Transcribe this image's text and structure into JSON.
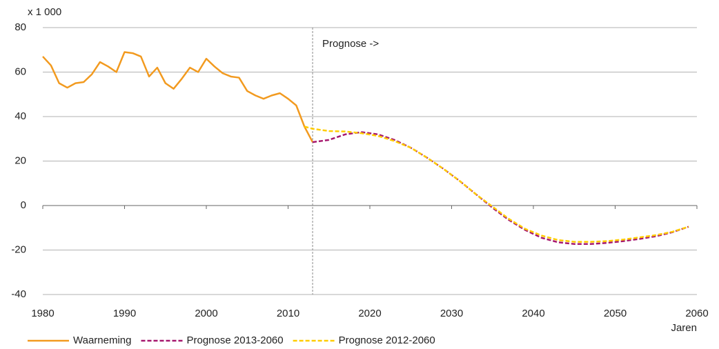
{
  "chart_data": {
    "type": "line",
    "y_unit_label": "x 1 000",
    "x_label": "Jaren",
    "annotation": {
      "text": "Prognose ->",
      "x": 2013
    },
    "xlim": [
      1980,
      2060
    ],
    "xticks": [
      1980,
      1990,
      2000,
      2010,
      2020,
      2030,
      2040,
      2050,
      2060
    ],
    "ylim": [
      -40,
      80
    ],
    "yticks": [
      -40,
      -20,
      0,
      20,
      40,
      60,
      80
    ],
    "grid": true,
    "legend": "bottom-left",
    "series": [
      {
        "name": "Waarneming",
        "color": "#f29a1f",
        "dash": false,
        "x": [
          1980,
          1981,
          1982,
          1983,
          1984,
          1985,
          1986,
          1987,
          1988,
          1989,
          1990,
          1991,
          1992,
          1993,
          1994,
          1995,
          1996,
          1997,
          1998,
          1999,
          2000,
          2001,
          2002,
          2003,
          2004,
          2005,
          2006,
          2007,
          2008,
          2009,
          2010,
          2011,
          2012,
          2013
        ],
        "values": [
          67,
          63,
          55,
          53,
          55,
          55.5,
          59,
          64.5,
          62.5,
          60,
          69,
          68.5,
          67,
          58,
          62,
          55,
          52.5,
          57,
          62,
          60,
          66,
          62.5,
          59.5,
          58,
          57.5,
          51.5,
          49.5,
          48,
          49.5,
          50.5,
          48,
          45,
          35.5,
          28.5
        ]
      },
      {
        "name": "Prognose 2013-2060",
        "color": "#a6176e",
        "dash": true,
        "x": [
          2013,
          2015,
          2017,
          2019,
          2021,
          2023,
          2025,
          2027,
          2029,
          2031,
          2033,
          2035,
          2037,
          2039,
          2041,
          2043,
          2045,
          2047,
          2049,
          2051,
          2053,
          2055,
          2057,
          2059
        ],
        "values": [
          28.5,
          29.5,
          32,
          33,
          32,
          29.5,
          26,
          21.5,
          16.5,
          11,
          5,
          -1,
          -6.5,
          -11,
          -14.5,
          -16.5,
          -17.3,
          -17.3,
          -16.8,
          -16,
          -15,
          -13.8,
          -12,
          -9.5
        ]
      },
      {
        "name": "Prognose 2012-2060",
        "color": "#ffcc00",
        "dash": true,
        "x": [
          2012,
          2013,
          2015,
          2017,
          2019,
          2021,
          2023,
          2025,
          2027,
          2029,
          2031,
          2033,
          2035,
          2037,
          2039,
          2041,
          2043,
          2045,
          2047,
          2049,
          2051,
          2053,
          2055,
          2057,
          2059
        ],
        "values": [
          35.5,
          34.5,
          33.5,
          33.3,
          32.5,
          31.3,
          29,
          26,
          21.5,
          16.5,
          11,
          5,
          -0.5,
          -6,
          -10.5,
          -13.5,
          -15.5,
          -16.3,
          -16.3,
          -16,
          -15.3,
          -14.3,
          -13.3,
          -11.8,
          -9.5
        ]
      }
    ]
  }
}
